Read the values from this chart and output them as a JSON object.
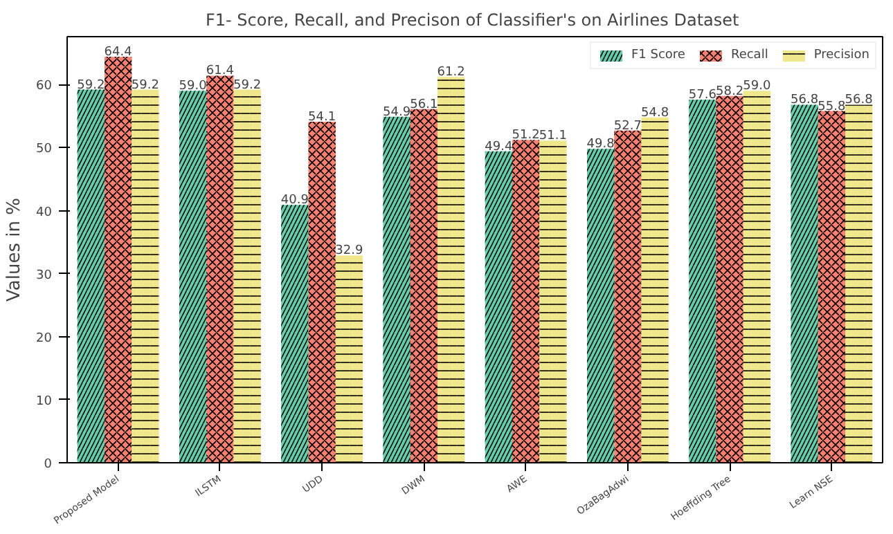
{
  "chart_data": {
    "type": "bar",
    "title": "F1- Score, Recall, and Precison  of Classifier's on Airlines Dataset",
    "ylabel": "Values in %",
    "categories": [
      "Proposed Model",
      "ILSTM",
      "UDD",
      "DWM",
      "AWE",
      "OzaBagAdwi",
      "Hoeffding Tree",
      "Learn NSE"
    ],
    "series": [
      {
        "name": "F1 Score",
        "color": "#66cdaa",
        "values": [
          59.2,
          59.0,
          40.9,
          54.9,
          49.4,
          49.8,
          57.6,
          56.8
        ],
        "value_labels": [
          "59.2",
          "59.0",
          "40.9",
          "54.9",
          "49.4",
          "49.8",
          "57.6",
          "56.8"
        ]
      },
      {
        "name": "Recall",
        "color": "#fa8072",
        "values": [
          64.4,
          61.4,
          54.1,
          56.1,
          51.2,
          52.7,
          58.2,
          55.8
        ],
        "value_labels": [
          "64.4",
          "61.4",
          "54.1",
          "56.1",
          "51.2",
          "52.7",
          "58.2",
          "55.8"
        ]
      },
      {
        "name": "Precision",
        "color": "#f0e68c",
        "values": [
          59.2,
          59.2,
          32.9,
          61.2,
          51.1,
          54.8,
          59.0,
          56.8
        ],
        "value_labels": [
          "59.2",
          "59.2",
          "32.9",
          "61.2",
          "51.1",
          "54.8",
          "59.0",
          "56.8"
        ]
      }
    ],
    "ylim": [
      0,
      67.6
    ],
    "yticks": [
      0,
      10,
      20,
      30,
      40,
      50,
      60
    ],
    "legend": "top right",
    "grid": false
  }
}
